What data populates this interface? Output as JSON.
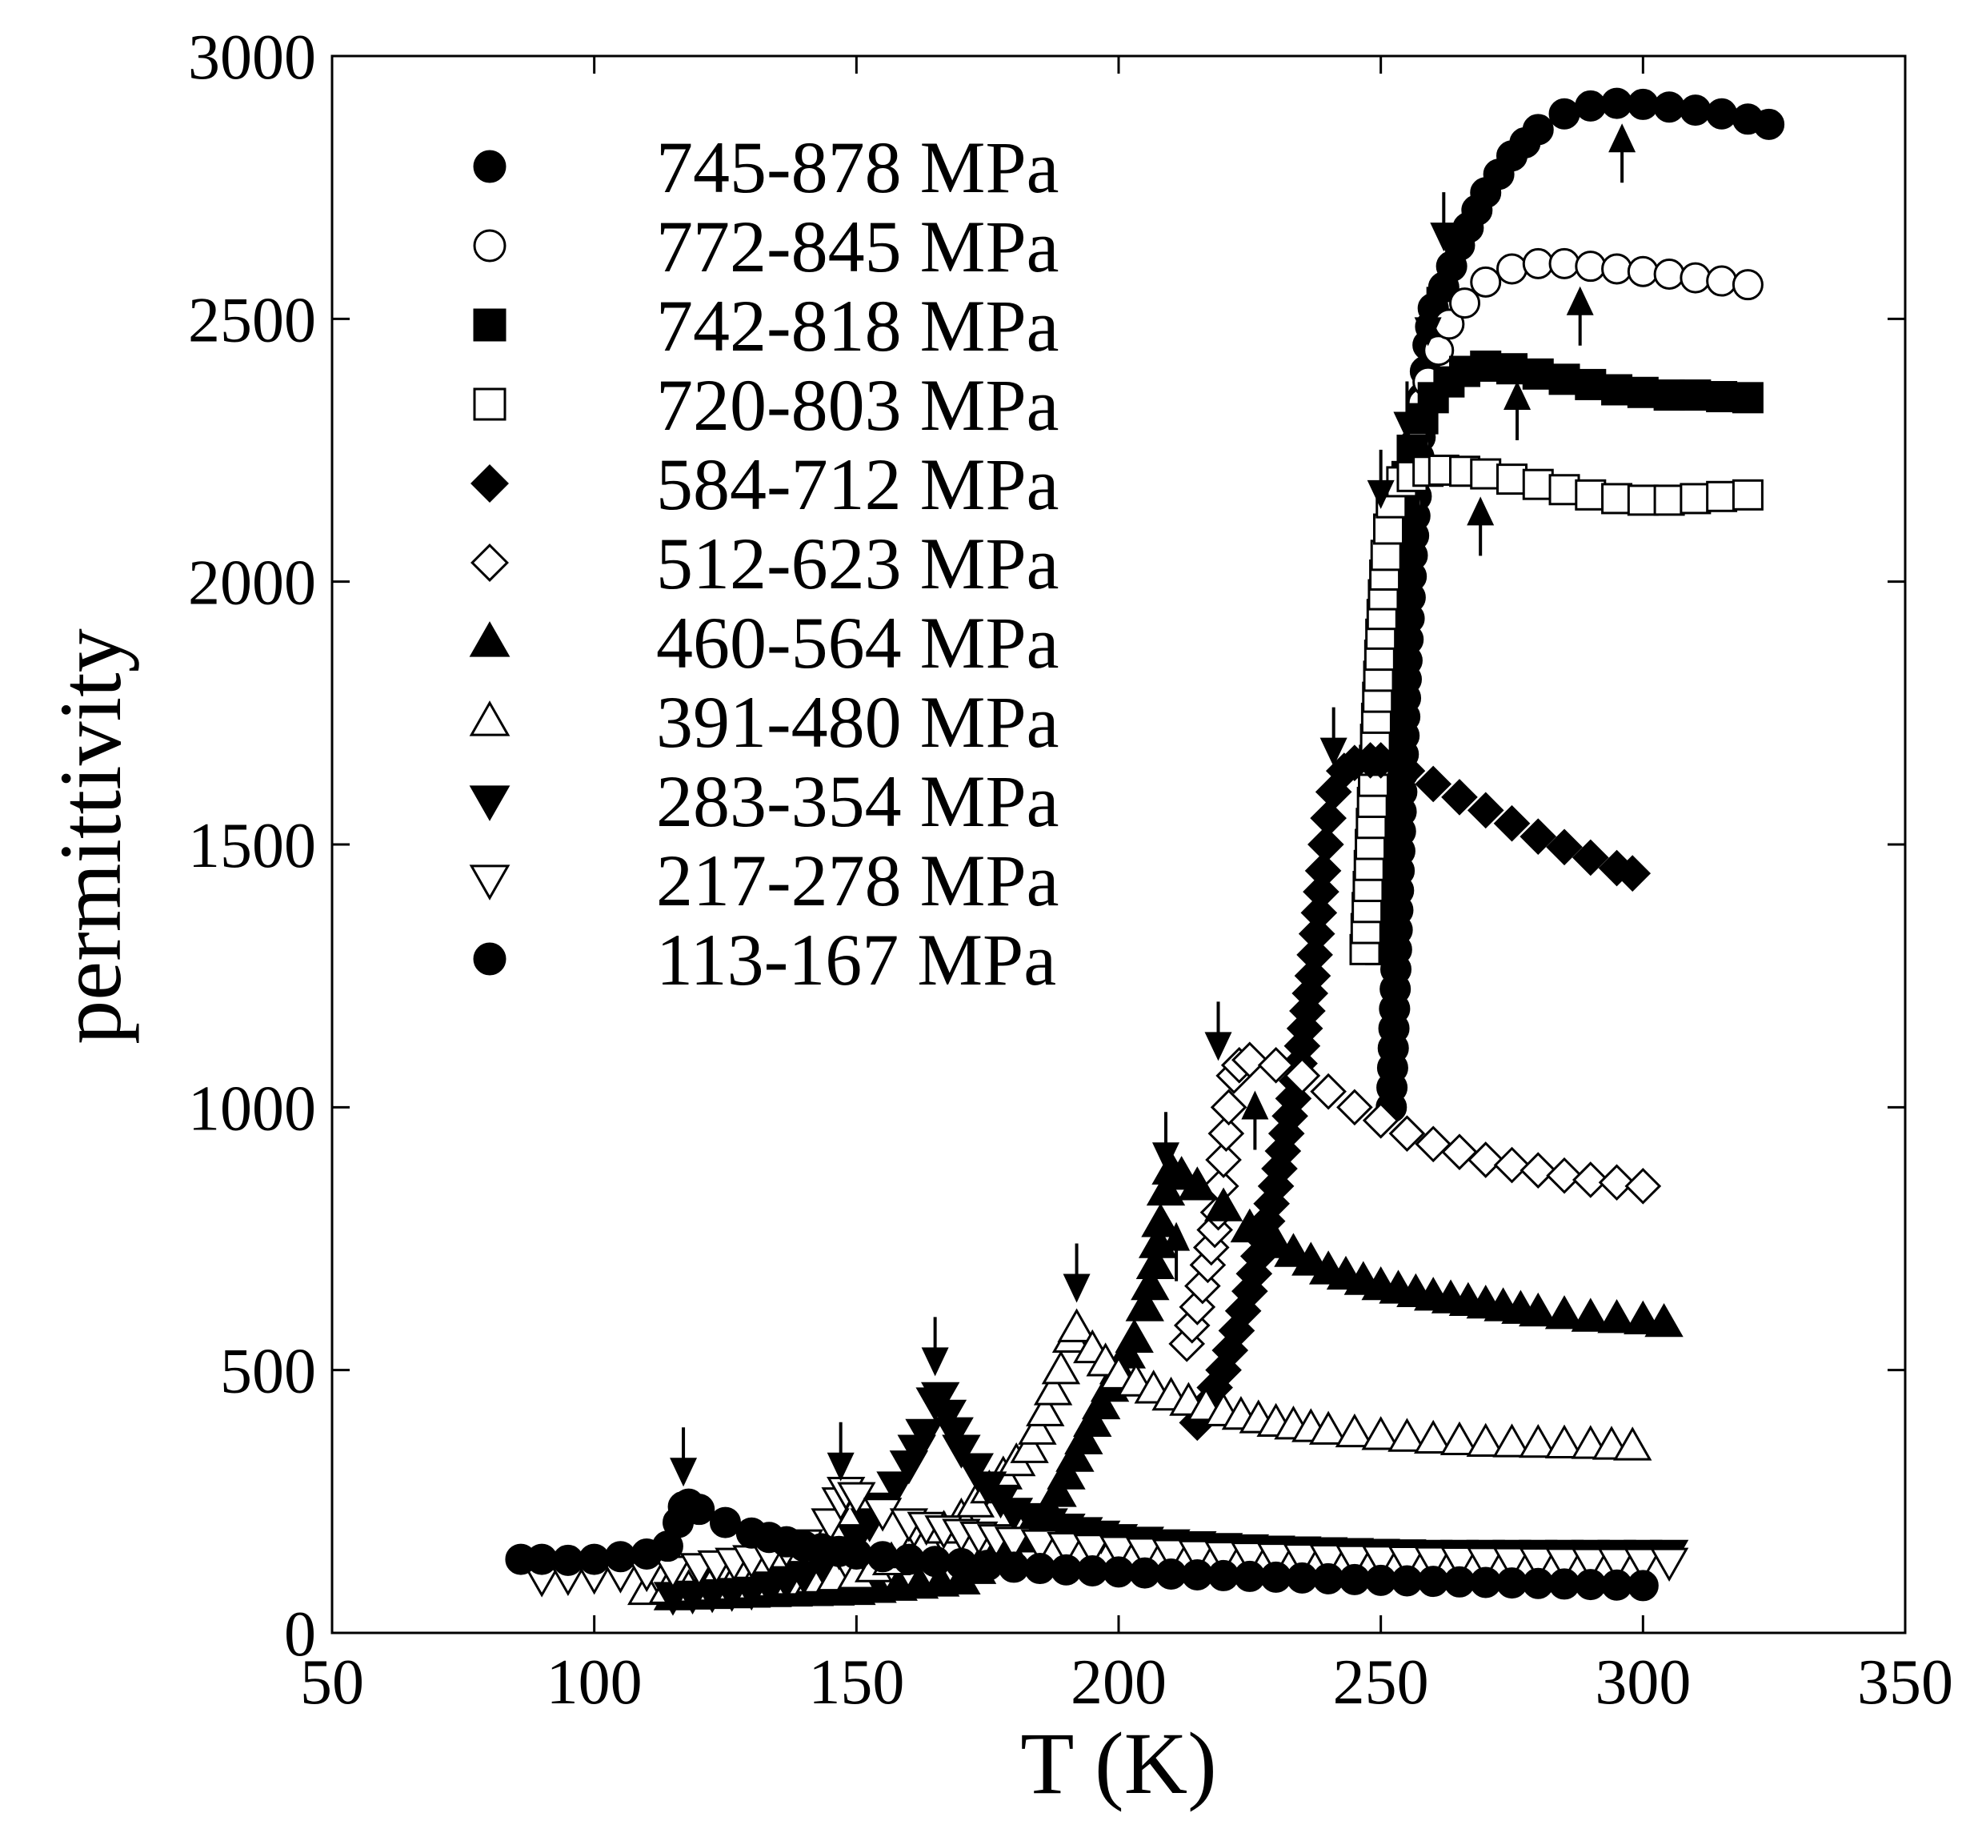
{
  "chart_data": {
    "type": "scatter",
    "title": "",
    "xlabel": "T (K)",
    "ylabel": "permittivity",
    "xlim": [
      50,
      350
    ],
    "ylim": [
      0,
      3000
    ],
    "xticks": [
      50,
      100,
      150,
      200,
      250,
      300,
      350
    ],
    "yticks": [
      0,
      500,
      1000,
      1500,
      2000,
      2500,
      3000
    ],
    "xtick_labels": [
      "50",
      "100",
      "150",
      "200",
      "250",
      "300",
      "350"
    ],
    "ytick_labels": [
      "0",
      "500",
      "1000",
      "1500",
      "2000",
      "2500",
      "3000"
    ],
    "grid": false,
    "legend_position": "top-left",
    "series": [
      {
        "name": "745-878 MPa",
        "marker": "circle",
        "filled": true,
        "x": [
          252,
          253,
          254,
          255,
          256,
          257,
          258,
          259,
          260,
          262,
          265,
          270,
          275,
          280,
          285,
          290,
          295,
          300,
          305,
          310,
          315,
          320,
          324
        ],
        "y": [
          1000,
          1300,
          1600,
          1850,
          2050,
          2200,
          2350,
          2450,
          2520,
          2560,
          2640,
          2740,
          2810,
          2860,
          2890,
          2905,
          2910,
          2908,
          2903,
          2897,
          2890,
          2880,
          2870
        ]
      },
      {
        "name": "772-845 MPa",
        "marker": "circle",
        "filled": false,
        "x": [
          255,
          257,
          259,
          261,
          263,
          266,
          270,
          275,
          280,
          285,
          290,
          295,
          300,
          305,
          310,
          315,
          320
        ],
        "y": [
          2150,
          2300,
          2380,
          2440,
          2490,
          2530,
          2570,
          2595,
          2605,
          2605,
          2600,
          2595,
          2590,
          2585,
          2578,
          2572,
          2565
        ]
      },
      {
        "name": "742-818 MPa",
        "marker": "square",
        "filled": true,
        "x": [
          250,
          251,
          252,
          253,
          254,
          255,
          256,
          258,
          260,
          263,
          266,
          270,
          275,
          280,
          285,
          290,
          295,
          300,
          305,
          310,
          315,
          320
        ],
        "y": [
          1300,
          1450,
          1700,
          1900,
          2100,
          2200,
          2250,
          2310,
          2350,
          2380,
          2400,
          2410,
          2405,
          2395,
          2385,
          2375,
          2365,
          2360,
          2355,
          2355,
          2352,
          2350
        ]
      },
      {
        "name": "720-803 MPa",
        "marker": "square",
        "filled": false,
        "x": [
          247,
          248,
          249,
          250,
          251,
          252,
          254,
          256,
          259,
          262,
          266,
          270,
          275,
          280,
          285,
          290,
          295,
          300,
          305,
          310,
          315,
          320
        ],
        "y": [
          1300,
          1500,
          1700,
          1900,
          2050,
          2150,
          2190,
          2200,
          2210,
          2212,
          2210,
          2205,
          2195,
          2185,
          2175,
          2165,
          2158,
          2155,
          2155,
          2158,
          2162,
          2165
        ]
      },
      {
        "name": "584-712 MPa",
        "marker": "diamond",
        "filled": true,
        "x": [
          215,
          220,
          225,
          230,
          234,
          237,
          239,
          240,
          241,
          243,
          245,
          248,
          250,
          255,
          260,
          265,
          270,
          275,
          280,
          285,
          290,
          295,
          298
        ],
        "y": [
          400,
          500,
          650,
          850,
          1050,
          1250,
          1450,
          1550,
          1600,
          1640,
          1655,
          1660,
          1660,
          1640,
          1615,
          1590,
          1565,
          1540,
          1515,
          1495,
          1475,
          1455,
          1445
        ]
      },
      {
        "name": "512-623 MPa",
        "marker": "diamond",
        "filled": false,
        "x": [
          213,
          215,
          217,
          219,
          220,
          221,
          222,
          223,
          225,
          230,
          235,
          240,
          245,
          250,
          255,
          260,
          265,
          270,
          275,
          280,
          285,
          290,
          295,
          300
        ],
        "y": [
          550,
          620,
          700,
          800,
          900,
          1000,
          1060,
          1080,
          1090,
          1080,
          1060,
          1030,
          1000,
          975,
          950,
          930,
          915,
          900,
          890,
          880,
          870,
          862,
          857,
          850
        ]
      },
      {
        "name": "460-564 MPa",
        "marker": "triangle-up",
        "filled": true,
        "x": [
          115,
          130,
          150,
          170,
          185,
          195,
          200,
          203,
          205,
          207,
          208,
          209,
          210,
          212,
          215,
          220,
          225,
          230,
          240,
          250,
          260,
          270,
          280,
          290,
          300,
          304
        ],
        "y": [
          70,
          75,
          80,
          100,
          200,
          400,
          500,
          560,
          620,
          700,
          780,
          840,
          880,
          870,
          850,
          810,
          770,
          740,
          690,
          660,
          640,
          625,
          610,
          600,
          595,
          590
        ]
      },
      {
        "name": "391-480 MPa",
        "marker": "triangle-up",
        "filled": false,
        "x": [
          110,
          130,
          150,
          160,
          170,
          178,
          183,
          186,
          189,
          191,
          192,
          195,
          200,
          210,
          220,
          230,
          240,
          250,
          260,
          270,
          280,
          290,
          298
        ],
        "y": [
          80,
          90,
          110,
          150,
          220,
          300,
          350,
          420,
          500,
          560,
          580,
          540,
          490,
          450,
          420,
          400,
          385,
          375,
          368,
          362,
          360,
          358,
          355
        ]
      },
      {
        "name": "283-354 MPa",
        "marker": "triangle-down",
        "filled": true,
        "x": [
          115,
          130,
          140,
          150,
          155,
          160,
          163,
          165,
          166,
          170,
          175,
          180,
          190,
          200,
          210,
          220,
          230,
          240,
          250,
          260,
          270,
          280,
          290,
          300,
          305
        ],
        "y": [
          70,
          80,
          110,
          180,
          240,
          320,
          380,
          440,
          450,
          350,
          280,
          230,
          200,
          180,
          170,
          163,
          158,
          155,
          152,
          150,
          150,
          150,
          150,
          150,
          150
        ]
      },
      {
        "name": "217-278 MPa",
        "marker": "triangle-down",
        "filled": false,
        "x": [
          90,
          100,
          110,
          120,
          130,
          140,
          145,
          147,
          148,
          150,
          155,
          160,
          170,
          180,
          190,
          200,
          210,
          220,
          230,
          240,
          250,
          260,
          270,
          280,
          290,
          300,
          305
        ],
        "y": [
          105,
          110,
          115,
          125,
          140,
          170,
          210,
          250,
          270,
          260,
          230,
          210,
          190,
          175,
          165,
          158,
          152,
          148,
          145,
          142,
          140,
          138,
          137,
          136,
          135,
          135,
          135
        ]
      },
      {
        "name": "113-167 MPa",
        "marker": "circle",
        "filled": true,
        "x": [
          86,
          90,
          95,
          100,
          105,
          110,
          114,
          116,
          117,
          118,
          120,
          125,
          130,
          140,
          150,
          160,
          170,
          180,
          190,
          200,
          210,
          220,
          230,
          240,
          250,
          260,
          270,
          280,
          290,
          300
        ],
        "y": [
          140,
          140,
          138,
          140,
          145,
          150,
          165,
          210,
          240,
          245,
          235,
          210,
          190,
          165,
          150,
          140,
          132,
          125,
          120,
          116,
          112,
          109,
          106,
          103,
          100,
          98,
          96,
          94,
          92,
          90
        ]
      }
    ],
    "annotations": [
      {
        "type": "arrow-down",
        "x": 117,
        "y": 330
      },
      {
        "type": "arrow-down",
        "x": 147,
        "y": 340
      },
      {
        "type": "arrow-down",
        "x": 165,
        "y": 540
      },
      {
        "type": "arrow-down",
        "x": 192,
        "y": 680
      },
      {
        "type": "arrow-down",
        "x": 209,
        "y": 930
      },
      {
        "type": "arrow-down",
        "x": 219,
        "y": 1140
      },
      {
        "type": "arrow-down",
        "x": 241,
        "y": 1700
      },
      {
        "type": "arrow-down",
        "x": 250,
        "y": 2190
      },
      {
        "type": "arrow-down",
        "x": 255,
        "y": 2320
      },
      {
        "type": "arrow-down",
        "x": 259,
        "y": 2500
      },
      {
        "type": "arrow-down",
        "x": 262,
        "y": 2680
      },
      {
        "type": "arrow-up",
        "x": 211,
        "y": 730
      },
      {
        "type": "arrow-up",
        "x": 226,
        "y": 980
      },
      {
        "type": "arrow-up",
        "x": 269,
        "y": 2110
      },
      {
        "type": "arrow-up",
        "x": 276,
        "y": 2330
      },
      {
        "type": "arrow-up",
        "x": 288,
        "y": 2510
      },
      {
        "type": "arrow-up",
        "x": 296,
        "y": 2820
      }
    ]
  }
}
